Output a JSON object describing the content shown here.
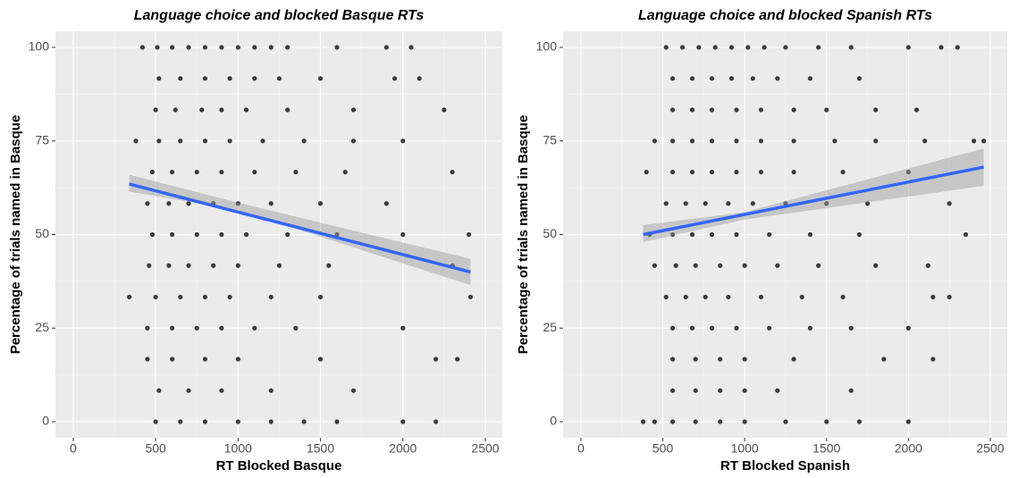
{
  "chart_data": [
    {
      "type": "scatter",
      "title": "Language choice and blocked Basque RTs",
      "x_label": "RT Blocked Basque",
      "y_label": "Percentage of trials named in Basque",
      "x": [
        420,
        510,
        600,
        700,
        800,
        900,
        1000,
        1100,
        1200,
        1300,
        1600,
        1900,
        2050,
        520,
        650,
        800,
        950,
        1100,
        1250,
        1500,
        1950,
        2100,
        500,
        620,
        780,
        900,
        1050,
        1300,
        1700,
        2250,
        380,
        520,
        650,
        800,
        950,
        1150,
        1400,
        1700,
        2000,
        480,
        600,
        750,
        900,
        1100,
        1350,
        1650,
        2300,
        450,
        580,
        700,
        850,
        1000,
        1200,
        1500,
        1900,
        480,
        600,
        750,
        900,
        1050,
        1300,
        1600,
        2000,
        2400,
        460,
        580,
        700,
        850,
        1000,
        1250,
        1550,
        2300,
        340,
        500,
        650,
        800,
        950,
        1200,
        1500,
        2410,
        450,
        600,
        750,
        900,
        1100,
        1350,
        2000,
        450,
        600,
        800,
        1000,
        1500,
        2200,
        2330,
        520,
        700,
        900,
        1200,
        1700,
        500,
        650,
        800,
        1000,
        1200,
        1400,
        1600,
        2000,
        2200
      ],
      "y": [
        100,
        100,
        100,
        100,
        100,
        100,
        100,
        100,
        100,
        100,
        100,
        100,
        100,
        91.7,
        91.7,
        91.7,
        91.7,
        91.7,
        91.7,
        91.7,
        91.7,
        91.7,
        83.3,
        83.3,
        83.3,
        83.3,
        83.3,
        83.3,
        83.3,
        83.3,
        75,
        75,
        75,
        75,
        75,
        75,
        75,
        75,
        75,
        66.7,
        66.7,
        66.7,
        66.7,
        66.7,
        66.7,
        66.7,
        66.7,
        58.3,
        58.3,
        58.3,
        58.3,
        58.3,
        58.3,
        58.3,
        58.3,
        50,
        50,
        50,
        50,
        50,
        50,
        50,
        50,
        50,
        41.7,
        41.7,
        41.7,
        41.7,
        41.7,
        41.7,
        41.7,
        41.7,
        33.3,
        33.3,
        33.3,
        33.3,
        33.3,
        33.3,
        33.3,
        33.3,
        25,
        25,
        25,
        25,
        25,
        25,
        25,
        16.7,
        16.7,
        16.7,
        16.7,
        16.7,
        16.7,
        16.7,
        8.3,
        8.3,
        8.3,
        8.3,
        8.3,
        0,
        0,
        0,
        0,
        0,
        0,
        0,
        0,
        0
      ],
      "color": "#000000",
      "fit": {
        "x": [
          340,
          2410
        ],
        "y": [
          63.5,
          40
        ],
        "color": "#3366ff"
      },
      "band": {
        "x": [
          340,
          1000,
          2410
        ],
        "lower": [
          61.5,
          56.5,
          36.5
        ],
        "upper": [
          66,
          58.5,
          43.5
        ],
        "color": "#999999"
      },
      "xlim": [
        -108,
        2603
      ],
      "ylim": [
        -4.3,
        104.3
      ],
      "xticks": [
        0,
        500,
        1000,
        1500,
        2000,
        2500
      ],
      "yticks": [
        0,
        25,
        50,
        75,
        100
      ],
      "grid": true
    },
    {
      "type": "scatter",
      "title": "Language choice and blocked Spanish RTs",
      "x_label": "RT Blocked Spanish",
      "y_label": "Percentage of trials named in Basque",
      "x": [
        520,
        620,
        720,
        820,
        920,
        1020,
        1120,
        1250,
        1450,
        1650,
        2000,
        2200,
        2300,
        560,
        680,
        800,
        920,
        1050,
        1200,
        1400,
        1700,
        560,
        680,
        800,
        950,
        1100,
        1300,
        1500,
        1800,
        2050,
        450,
        560,
        680,
        800,
        950,
        1100,
        1300,
        1550,
        1800,
        2100,
        2400,
        2460,
        400,
        560,
        680,
        800,
        950,
        1100,
        1300,
        1600,
        2000,
        520,
        640,
        760,
        900,
        1050,
        1250,
        1500,
        1750,
        2250,
        420,
        560,
        680,
        800,
        950,
        1150,
        1400,
        1700,
        2350,
        450,
        580,
        700,
        850,
        1000,
        1200,
        1450,
        1800,
        2120,
        520,
        640,
        760,
        900,
        1100,
        1350,
        1600,
        2150,
        2250,
        560,
        680,
        800,
        950,
        1150,
        1400,
        1650,
        2000,
        560,
        700,
        850,
        1000,
        1300,
        1850,
        2150,
        560,
        700,
        850,
        1000,
        1200,
        1650,
        380,
        450,
        560,
        700,
        850,
        1000,
        1250,
        1500,
        1700,
        2000
      ],
      "y": [
        100,
        100,
        100,
        100,
        100,
        100,
        100,
        100,
        100,
        100,
        100,
        100,
        100,
        91.7,
        91.7,
        91.7,
        91.7,
        91.7,
        91.7,
        91.7,
        91.7,
        83.3,
        83.3,
        83.3,
        83.3,
        83.3,
        83.3,
        83.3,
        83.3,
        83.3,
        75,
        75,
        75,
        75,
        75,
        75,
        75,
        75,
        75,
        75,
        75,
        75,
        66.7,
        66.7,
        66.7,
        66.7,
        66.7,
        66.7,
        66.7,
        66.7,
        66.7,
        58.3,
        58.3,
        58.3,
        58.3,
        58.3,
        58.3,
        58.3,
        58.3,
        58.3,
        50,
        50,
        50,
        50,
        50,
        50,
        50,
        50,
        50,
        41.7,
        41.7,
        41.7,
        41.7,
        41.7,
        41.7,
        41.7,
        41.7,
        41.7,
        33.3,
        33.3,
        33.3,
        33.3,
        33.3,
        33.3,
        33.3,
        33.3,
        33.3,
        25,
        25,
        25,
        25,
        25,
        25,
        25,
        25,
        16.7,
        16.7,
        16.7,
        16.7,
        16.7,
        16.7,
        16.7,
        8.3,
        8.3,
        8.3,
        8.3,
        8.3,
        8.3,
        0,
        0,
        0,
        0,
        0,
        0,
        0,
        0,
        0,
        0
      ],
      "color": "#000000",
      "fit": {
        "x": [
          380,
          2460
        ],
        "y": [
          50,
          68
        ],
        "color": "#3366ff"
      },
      "band": {
        "x": [
          380,
          1000,
          2460
        ],
        "lower": [
          48,
          54,
          63
        ],
        "upper": [
          52.5,
          56,
          73
        ],
        "color": "#999999"
      },
      "xlim": [
        -109,
        2604
      ],
      "ylim": [
        -4.3,
        104.3
      ],
      "xticks": [
        0,
        500,
        1000,
        1500,
        2000,
        2500
      ],
      "yticks": [
        0,
        25,
        50,
        75,
        100
      ],
      "grid": true
    }
  ]
}
